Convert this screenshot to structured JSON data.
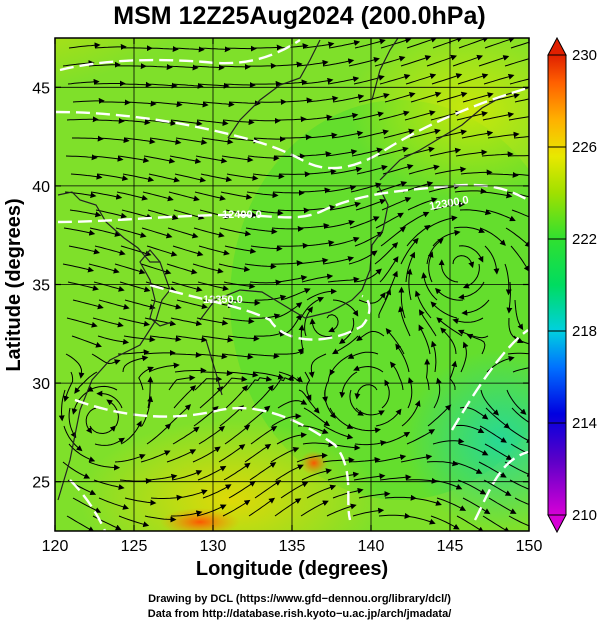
{
  "title": "MSM 12Z25Aug2024 (200.0hPa)",
  "chart_data": {
    "type": "heatmap",
    "title": "MSM 12Z25Aug2024 (200.0hPa)",
    "xlabel": "Longitude (degrees)",
    "ylabel": "Latitude  (degrees)",
    "xlim": [
      120,
      150
    ],
    "ylim": [
      22.5,
      47.5
    ],
    "x_ticks": [
      "120",
      "125",
      "130",
      "135",
      "140",
      "145",
      "150"
    ],
    "y_ticks": [
      "25",
      "30",
      "35",
      "40",
      "45"
    ],
    "colorbar": {
      "min": 210,
      "max": 230,
      "ticks": [
        "210",
        "214",
        "218",
        "222",
        "226",
        "230"
      ]
    },
    "contours": [
      {
        "label": "12400.0",
        "value": 12400.0
      },
      {
        "label": "12350.0",
        "value": 12350.0
      },
      {
        "label": "12300.0",
        "value": 12300.0
      }
    ],
    "grid": true
  },
  "credits": [
    "Drawing by DCL (https://www.gfd−dennou.org/library/dcl/)",
    "Data from http://database.rish.kyoto−u.ac.jp/arch/jmadata/"
  ]
}
